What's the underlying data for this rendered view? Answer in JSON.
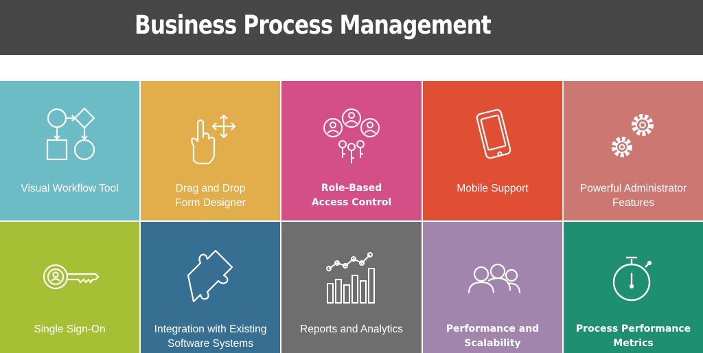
{
  "header": {
    "title": "Business Process Management"
  },
  "tiles": [
    {
      "label": "Visual Workflow Tool",
      "icon": "workflow-icon",
      "color": "#6bbcc4"
    },
    {
      "label": "Drag and Drop\nForm Designer",
      "icon": "drag-hand-icon",
      "color": "#e2ae4c"
    },
    {
      "label": "Role-Based\nAccess Control",
      "icon": "users-keys-icon",
      "color": "#d44f86"
    },
    {
      "label": "Mobile Support",
      "icon": "mobile-phone-icon",
      "color": "#e04e34"
    },
    {
      "label": "Powerful Administrator\nFeatures",
      "icon": "gears-icon",
      "color": "#cc7771"
    },
    {
      "label": "Single Sign-On",
      "icon": "key-icon",
      "color": "#a6c036"
    },
    {
      "label": "Integration with Existing\nSoftware Systems",
      "icon": "puzzle-piece-icon",
      "color": "#376f92"
    },
    {
      "label": "Reports and Analytics",
      "icon": "bar-line-chart-icon",
      "color": "#6f6e6e"
    },
    {
      "label": "Performance and\nScalability",
      "icon": "people-group-icon",
      "color": "#a185ad"
    },
    {
      "label": "Process Performance\nMetrics",
      "icon": "stopwatch-icon",
      "color": "#1f8f72"
    }
  ]
}
